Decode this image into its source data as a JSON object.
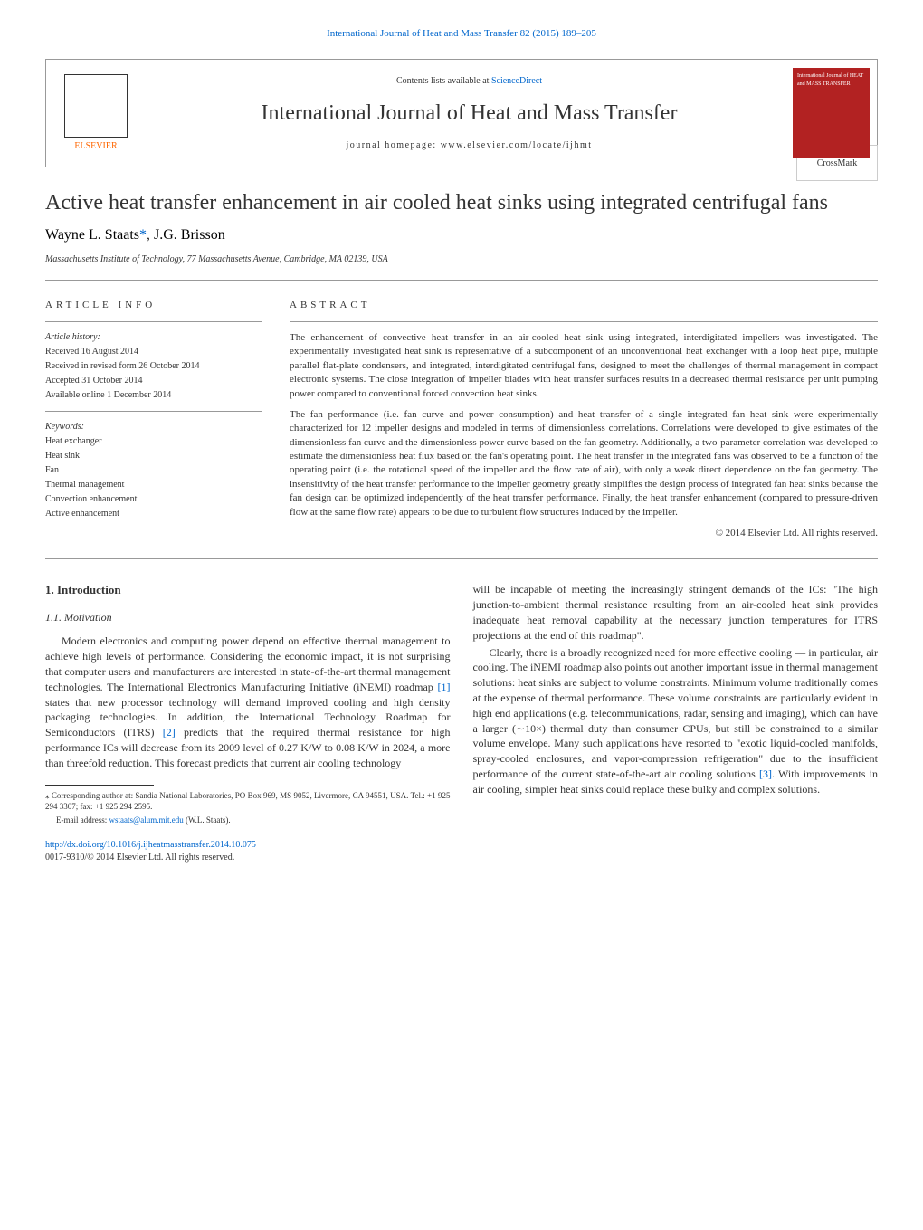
{
  "journal_ref": "International Journal of Heat and Mass Transfer 82 (2015) 189–205",
  "header": {
    "elsevier_label": "ELSEVIER",
    "contents_prefix": "Contents lists available at ",
    "sciencedirect": "ScienceDirect",
    "journal_title": "International Journal of Heat and Mass Transfer",
    "homepage_prefix": "journal homepage: ",
    "homepage_url": "www.elsevier.com/locate/ijhmt",
    "cover_text": "International Journal of HEAT and MASS TRANSFER"
  },
  "article": {
    "title": "Active heat transfer enhancement in air cooled heat sinks using integrated centrifugal fans",
    "crossmark_label": "CrossMark",
    "authors_html": "Wayne L. Staats",
    "author_sep": ", ",
    "author2": "J.G. Brisson",
    "asterisk": "*",
    "affiliation": "Massachusetts Institute of Technology, 77 Massachusetts Avenue, Cambridge, MA 02139, USA"
  },
  "info": {
    "heading": "ARTICLE INFO",
    "history_label": "Article history:",
    "received": "Received 16 August 2014",
    "revised": "Received in revised form 26 October 2014",
    "accepted": "Accepted 31 October 2014",
    "available": "Available online 1 December 2014",
    "keywords_label": "Keywords:",
    "keywords": [
      "Heat exchanger",
      "Heat sink",
      "Fan",
      "Thermal management",
      "Convection enhancement",
      "Active enhancement"
    ]
  },
  "abstract": {
    "heading": "ABSTRACT",
    "p1": "The enhancement of convective heat transfer in an air-cooled heat sink using integrated, interdigitated impellers was investigated. The experimentally investigated heat sink is representative of a subcomponent of an unconventional heat exchanger with a loop heat pipe, multiple parallel flat-plate condensers, and integrated, interdigitated centrifugal fans, designed to meet the challenges of thermal management in compact electronic systems. The close integration of impeller blades with heat transfer surfaces results in a decreased thermal resistance per unit pumping power compared to conventional forced convection heat sinks.",
    "p2": "The fan performance (i.e. fan curve and power consumption) and heat transfer of a single integrated fan heat sink were experimentally characterized for 12 impeller designs and modeled in terms of dimensionless correlations. Correlations were developed to give estimates of the dimensionless fan curve and the dimensionless power curve based on the fan geometry. Additionally, a two-parameter correlation was developed to estimate the dimensionless heat flux based on the fan's operating point. The heat transfer in the integrated fans was observed to be a function of the operating point (i.e. the rotational speed of the impeller and the flow rate of air), with only a weak direct dependence on the fan geometry. The insensitivity of the heat transfer performance to the impeller geometry greatly simplifies the design process of integrated fan heat sinks because the fan design can be optimized independently of the heat transfer performance. Finally, the heat transfer enhancement (compared to pressure-driven flow at the same flow rate) appears to be due to turbulent flow structures induced by the impeller.",
    "copyright": "© 2014 Elsevier Ltd. All rights reserved."
  },
  "body": {
    "intro_heading": "1. Introduction",
    "motivation_heading": "1.1. Motivation",
    "left_p1_a": "Modern electronics and computing power depend on effective thermal management to achieve high levels of performance. Considering the economic impact, it is not surprising that computer users and manufacturers are interested in state-of-the-art thermal management technologies. The International Electronics Manufacturing Initiative (iNEMI) roadmap ",
    "ref1": "[1]",
    "left_p1_b": " states that new processor technology will demand improved cooling and high density packaging technologies. In addition, the International Technology Roadmap for Semiconductors (ITRS) ",
    "ref2": "[2]",
    "left_p1_c": " predicts that the required thermal resistance for high performance ICs will decrease from its 2009 level of 0.27 K/W to 0.08 K/W in 2024, a more than threefold reduction. This forecast predicts that current air cooling technology ",
    "right_p1": "will be incapable of meeting the increasingly stringent demands of the ICs: \"The high junction-to-ambient thermal resistance resulting from an air-cooled heat sink provides inadequate heat removal capability at the necessary junction temperatures for ITRS projections at the end of this roadmap\".",
    "right_p2_a": "Clearly, there is a broadly recognized need for more effective cooling — in particular, air cooling. The iNEMI roadmap also points out another important issue in thermal management solutions: heat sinks are subject to volume constraints. Minimum volume traditionally comes at the expense of thermal performance. These volume constraints are particularly evident in high end applications (e.g. telecommunications, radar, sensing and imaging), which can have a larger (∼10×) thermal duty than consumer CPUs, but still be constrained to a similar volume envelope. Many such applications have resorted to \"exotic liquid-cooled manifolds, spray-cooled enclosures, and vapor-compression refrigeration\" due to the insufficient performance of the current state-of-the-art air cooling solutions ",
    "ref3": "[3]",
    "right_p2_b": ". With improvements in air cooling, simpler heat sinks could replace these bulky and complex solutions."
  },
  "footnote": {
    "corresponding_a": "⁎ Corresponding author at: Sandia National Laboratories, PO Box 969, MS 9052, Livermore, CA 94551, USA. Tel.: +1 925 294 3307; fax: +1 925 294 2595.",
    "email_label": "E-mail address: ",
    "email": "wstaats@alum.mit.edu",
    "email_suffix": " (W.L. Staats)."
  },
  "doi": {
    "url": "http://dx.doi.org/10.1016/j.ijheatmasstransfer.2014.10.075",
    "issn": "0017-9310/© 2014 Elsevier Ltd. All rights reserved."
  }
}
